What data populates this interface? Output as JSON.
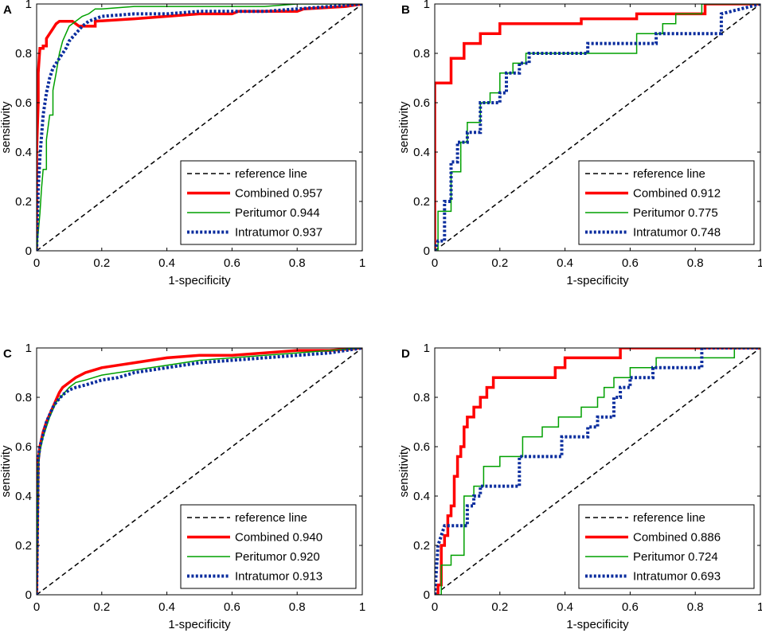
{
  "chart_data": [
    {
      "type": "line",
      "panel_label": "A",
      "xlabel": "1-specificity",
      "ylabel": "sensitivity",
      "xlim": [
        0,
        1
      ],
      "ylim": [
        0,
        1
      ],
      "xticks": [
        "0",
        "0.2",
        "0.4",
        "0.6",
        "0.8",
        "1"
      ],
      "yticks": [
        "0",
        "0.2",
        "0.4",
        "0.6",
        "0.8",
        "1"
      ],
      "legend_position": "bottom-right",
      "series": [
        {
          "name": "reference line",
          "style": "dashed",
          "color": "#000000",
          "x": [
            0,
            1
          ],
          "y": [
            0,
            1
          ]
        },
        {
          "name": "Combined",
          "auc": "0.957",
          "style": "solid-thick",
          "color": "#ff0000",
          "x": [
            0,
            0,
            0.005,
            0.005,
            0.01,
            0.02,
            0.02,
            0.03,
            0.03,
            0.04,
            0.05,
            0.06,
            0.07,
            0.08,
            0.11,
            0.13,
            0.18,
            0.18,
            0.3,
            0.5,
            0.6,
            0.62,
            0.8,
            0.82,
            0.95,
            1
          ],
          "y": [
            0,
            0.4,
            0.6,
            0.72,
            0.82,
            0.82,
            0.83,
            0.83,
            0.86,
            0.88,
            0.9,
            0.92,
            0.93,
            0.93,
            0.93,
            0.91,
            0.91,
            0.93,
            0.94,
            0.96,
            0.96,
            0.97,
            0.97,
            0.98,
            0.99,
            1
          ]
        },
        {
          "name": "Peritumor",
          "auc": "0.944",
          "style": "solid-thin",
          "color": "#00a000",
          "x": [
            0,
            0.01,
            0.015,
            0.02,
            0.02,
            0.03,
            0.03,
            0.04,
            0.05,
            0.05,
            0.06,
            0.07,
            0.08,
            0.09,
            0.1,
            0.12,
            0.14,
            0.16,
            0.18,
            0.2,
            0.3,
            0.5,
            0.6,
            0.7,
            0.8,
            1
          ],
          "y": [
            0,
            0.15,
            0.25,
            0.33,
            0.33,
            0.33,
            0.45,
            0.55,
            0.55,
            0.65,
            0.72,
            0.8,
            0.85,
            0.88,
            0.91,
            0.93,
            0.95,
            0.96,
            0.98,
            0.98,
            0.99,
            0.99,
            0.99,
            0.99,
            1,
            1
          ]
        },
        {
          "name": "Intratumor",
          "auc": "0.937",
          "style": "dotted-thick",
          "color": "#0a2d9e",
          "x": [
            0,
            0.005,
            0.01,
            0.02,
            0.03,
            0.04,
            0.05,
            0.06,
            0.07,
            0.08,
            0.09,
            0.1,
            0.12,
            0.14,
            0.16,
            0.18,
            0.2,
            0.3,
            0.4,
            0.5,
            0.6,
            0.7,
            0.8,
            0.9,
            1
          ],
          "y": [
            0,
            0.25,
            0.38,
            0.55,
            0.64,
            0.7,
            0.74,
            0.76,
            0.78,
            0.8,
            0.82,
            0.85,
            0.88,
            0.91,
            0.93,
            0.94,
            0.95,
            0.96,
            0.96,
            0.97,
            0.97,
            0.97,
            0.98,
            0.99,
            1
          ]
        }
      ]
    },
    {
      "type": "line",
      "panel_label": "B",
      "xlabel": "1-specificity",
      "ylabel": "sensitivity",
      "xlim": [
        0,
        1
      ],
      "ylim": [
        0,
        1
      ],
      "xticks": [
        "0",
        "0.2",
        "0.4",
        "0.6",
        "0.8",
        "1"
      ],
      "yticks": [
        "0",
        "0.2",
        "0.4",
        "0.6",
        "0.8",
        "1"
      ],
      "legend_position": "bottom-right",
      "series": [
        {
          "name": "reference line",
          "style": "dashed",
          "color": "#000000",
          "x": [
            0,
            1
          ],
          "y": [
            0,
            1
          ]
        },
        {
          "name": "Combined",
          "auc": "0.912",
          "style": "solid-thick",
          "color": "#ff0000",
          "x": [
            0,
            0,
            0.05,
            0.05,
            0.09,
            0.09,
            0.14,
            0.14,
            0.2,
            0.2,
            0.45,
            0.45,
            0.62,
            0.62,
            0.83,
            0.83,
            1
          ],
          "y": [
            0,
            0.68,
            0.68,
            0.78,
            0.78,
            0.84,
            0.84,
            0.88,
            0.88,
            0.92,
            0.92,
            0.94,
            0.94,
            0.96,
            0.96,
            1,
            1
          ]
        },
        {
          "name": "Peritumor",
          "auc": "0.775",
          "style": "solid-thin",
          "color": "#00a000",
          "x": [
            0,
            0.01,
            0.01,
            0.05,
            0.05,
            0.08,
            0.08,
            0.1,
            0.1,
            0.14,
            0.14,
            0.17,
            0.17,
            0.2,
            0.2,
            0.24,
            0.24,
            0.28,
            0.28,
            0.37,
            0.37,
            0.62,
            0.62,
            0.7,
            0.7,
            0.74,
            0.74,
            0.82,
            0.82,
            1
          ],
          "y": [
            0,
            0,
            0.16,
            0.16,
            0.32,
            0.32,
            0.44,
            0.44,
            0.52,
            0.52,
            0.6,
            0.6,
            0.64,
            0.64,
            0.72,
            0.72,
            0.76,
            0.76,
            0.8,
            0.8,
            0.8,
            0.8,
            0.88,
            0.88,
            0.92,
            0.92,
            0.96,
            0.96,
            1,
            1
          ]
        },
        {
          "name": "Intratumor",
          "auc": "0.748",
          "style": "dotted-thick",
          "color": "#0a2d9e",
          "x": [
            0,
            0.01,
            0.03,
            0.03,
            0.05,
            0.05,
            0.07,
            0.07,
            0.1,
            0.1,
            0.14,
            0.14,
            0.2,
            0.2,
            0.22,
            0.22,
            0.26,
            0.26,
            0.29,
            0.29,
            0.36,
            0.36,
            0.47,
            0.47,
            0.68,
            0.68,
            0.76,
            0.76,
            0.88,
            0.88,
            1
          ],
          "y": [
            0,
            0.04,
            0.04,
            0.2,
            0.2,
            0.36,
            0.36,
            0.44,
            0.44,
            0.48,
            0.48,
            0.6,
            0.6,
            0.64,
            0.64,
            0.72,
            0.72,
            0.76,
            0.76,
            0.8,
            0.8,
            0.8,
            0.8,
            0.84,
            0.84,
            0.88,
            0.88,
            0.88,
            0.88,
            0.96,
            1
          ]
        }
      ]
    },
    {
      "type": "line",
      "panel_label": "C",
      "xlabel": "1-specificity",
      "ylabel": "sensitivity",
      "xlim": [
        0,
        1
      ],
      "ylim": [
        0,
        1
      ],
      "xticks": [
        "0",
        "0.2",
        "0.4",
        "0.6",
        "0.8",
        "1"
      ],
      "yticks": [
        "0",
        "0.2",
        "0.4",
        "0.6",
        "0.8",
        "1"
      ],
      "legend_position": "bottom-right",
      "series": [
        {
          "name": "reference line",
          "style": "dashed",
          "color": "#000000",
          "x": [
            0,
            1
          ],
          "y": [
            0,
            1
          ]
        },
        {
          "name": "Combined",
          "auc": "0.940",
          "style": "solid-thick",
          "color": "#ff0000",
          "x": [
            0,
            0.005,
            0.01,
            0.02,
            0.03,
            0.04,
            0.05,
            0.06,
            0.07,
            0.08,
            0.1,
            0.12,
            0.15,
            0.2,
            0.25,
            0.3,
            0.35,
            0.4,
            0.5,
            0.6,
            0.7,
            0.8,
            0.9,
            1
          ],
          "y": [
            0,
            0.54,
            0.6,
            0.66,
            0.7,
            0.73,
            0.76,
            0.79,
            0.82,
            0.84,
            0.86,
            0.88,
            0.9,
            0.92,
            0.93,
            0.94,
            0.95,
            0.96,
            0.97,
            0.97,
            0.98,
            0.99,
            0.99,
            1
          ]
        },
        {
          "name": "Peritumor",
          "auc": "0.920",
          "style": "solid-thin",
          "color": "#00a000",
          "x": [
            0,
            0.005,
            0.01,
            0.02,
            0.03,
            0.04,
            0.05,
            0.06,
            0.08,
            0.1,
            0.12,
            0.15,
            0.2,
            0.25,
            0.3,
            0.4,
            0.5,
            0.6,
            0.7,
            0.8,
            0.9,
            1
          ],
          "y": [
            0,
            0.52,
            0.58,
            0.64,
            0.68,
            0.72,
            0.75,
            0.78,
            0.81,
            0.84,
            0.86,
            0.87,
            0.89,
            0.9,
            0.91,
            0.93,
            0.95,
            0.96,
            0.97,
            0.98,
            0.99,
            1
          ]
        },
        {
          "name": "Intratumor",
          "auc": "0.913",
          "style": "dotted-thick",
          "color": "#0a2d9e",
          "x": [
            0,
            0.005,
            0.01,
            0.02,
            0.03,
            0.04,
            0.05,
            0.06,
            0.08,
            0.1,
            0.12,
            0.15,
            0.2,
            0.25,
            0.3,
            0.4,
            0.5,
            0.6,
            0.7,
            0.8,
            0.9,
            1
          ],
          "y": [
            0,
            0.55,
            0.6,
            0.65,
            0.7,
            0.73,
            0.76,
            0.78,
            0.81,
            0.83,
            0.84,
            0.85,
            0.87,
            0.88,
            0.9,
            0.92,
            0.94,
            0.95,
            0.96,
            0.97,
            0.98,
            1
          ]
        }
      ]
    },
    {
      "type": "line",
      "panel_label": "D",
      "xlabel": "1-specificity",
      "ylabel": "sensitivity",
      "xlim": [
        0,
        1
      ],
      "ylim": [
        0,
        1
      ],
      "xticks": [
        "0",
        "0.2",
        "0.4",
        "0.6",
        "0.8",
        "1"
      ],
      "yticks": [
        "0",
        "0.2",
        "0.4",
        "0.6",
        "0.8",
        "1"
      ],
      "legend_position": "bottom-right",
      "series": [
        {
          "name": "reference line",
          "style": "dashed",
          "color": "#000000",
          "x": [
            0,
            1
          ],
          "y": [
            0,
            1
          ]
        },
        {
          "name": "Combined",
          "auc": "0.886",
          "style": "solid-thick",
          "color": "#ff0000",
          "x": [
            0,
            0.01,
            0.01,
            0.02,
            0.02,
            0.03,
            0.03,
            0.04,
            0.04,
            0.05,
            0.05,
            0.06,
            0.06,
            0.07,
            0.07,
            0.08,
            0.08,
            0.09,
            0.09,
            0.1,
            0.1,
            0.12,
            0.12,
            0.14,
            0.14,
            0.16,
            0.16,
            0.18,
            0.18,
            0.37,
            0.37,
            0.4,
            0.4,
            0.42,
            0.42,
            0.57,
            0.57,
            1
          ],
          "y": [
            0,
            0,
            0.04,
            0.04,
            0.2,
            0.2,
            0.24,
            0.24,
            0.32,
            0.32,
            0.36,
            0.36,
            0.48,
            0.48,
            0.56,
            0.56,
            0.6,
            0.6,
            0.68,
            0.68,
            0.72,
            0.72,
            0.76,
            0.76,
            0.8,
            0.8,
            0.84,
            0.84,
            0.88,
            0.88,
            0.92,
            0.92,
            0.96,
            0.96,
            0.96,
            0.96,
            1,
            1
          ]
        },
        {
          "name": "Peritumor",
          "auc": "0.724",
          "style": "solid-thin",
          "color": "#00a000",
          "x": [
            0,
            0.02,
            0.02,
            0.05,
            0.05,
            0.09,
            0.09,
            0.12,
            0.12,
            0.15,
            0.15,
            0.2,
            0.2,
            0.27,
            0.27,
            0.33,
            0.33,
            0.38,
            0.38,
            0.45,
            0.45,
            0.5,
            0.5,
            0.52,
            0.52,
            0.55,
            0.55,
            0.6,
            0.6,
            0.68,
            0.68,
            0.82,
            0.82,
            0.92,
            0.92,
            1
          ],
          "y": [
            0,
            0,
            0.12,
            0.12,
            0.16,
            0.16,
            0.4,
            0.4,
            0.44,
            0.44,
            0.52,
            0.52,
            0.56,
            0.56,
            0.64,
            0.64,
            0.68,
            0.68,
            0.72,
            0.72,
            0.76,
            0.76,
            0.8,
            0.8,
            0.84,
            0.84,
            0.88,
            0.88,
            0.92,
            0.92,
            0.96,
            0.96,
            0.96,
            0.96,
            1,
            1
          ]
        },
        {
          "name": "Intratumor",
          "auc": "0.693",
          "style": "dotted-thick",
          "color": "#0a2d9e",
          "x": [
            0,
            0.01,
            0.01,
            0.03,
            0.03,
            0.1,
            0.1,
            0.12,
            0.12,
            0.14,
            0.14,
            0.26,
            0.26,
            0.39,
            0.39,
            0.47,
            0.47,
            0.5,
            0.5,
            0.55,
            0.55,
            0.57,
            0.57,
            0.6,
            0.6,
            0.67,
            0.67,
            0.82,
            0.82,
            1
          ],
          "y": [
            0,
            0.2,
            0.2,
            0.28,
            0.28,
            0.28,
            0.36,
            0.36,
            0.4,
            0.4,
            0.44,
            0.44,
            0.56,
            0.56,
            0.64,
            0.64,
            0.68,
            0.68,
            0.72,
            0.72,
            0.8,
            0.8,
            0.84,
            0.84,
            0.88,
            0.88,
            0.92,
            0.92,
            1,
            1
          ]
        }
      ]
    }
  ]
}
